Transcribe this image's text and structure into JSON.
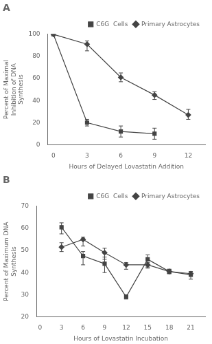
{
  "chart_data": [
    {
      "type": "line",
      "title": "A",
      "xlabel": "Hours of Delayed Lovastatin Addition",
      "ylabel": "Percent of Maximal Inhibition of DNA Synthesis",
      "xlim": [
        -0.5,
        13.5
      ],
      "xticks": [
        0,
        3,
        6,
        9,
        12
      ],
      "ylim": [
        0,
        100
      ],
      "yticks": [
        0,
        20,
        40,
        60,
        80,
        100
      ],
      "grid": false,
      "legend": "upper right",
      "series": [
        {
          "name": "C6G  Cells",
          "color": "#444444",
          "marker": "square",
          "x": [
            0,
            3,
            6,
            9
          ],
          "values": [
            100,
            20,
            12,
            10
          ],
          "error_low": [
            0,
            3,
            5,
            5
          ],
          "error_high": [
            0,
            3,
            5,
            5
          ]
        },
        {
          "name": "Primary Astrocytes",
          "color": "#444444",
          "marker": "diamond",
          "x": [
            0,
            3,
            6,
            9,
            12
          ],
          "values": [
            100,
            91,
            61,
            45,
            27
          ],
          "error_low": [
            0,
            6,
            4,
            4,
            4
          ],
          "error_high": [
            0,
            3,
            4,
            3,
            5
          ]
        }
      ]
    },
    {
      "type": "line",
      "title": "B",
      "xlabel": "Hours of Lovastatin Incubation",
      "ylabel": "Percent of Maximum DNA Synthesis",
      "xlim": [
        -0.5,
        23
      ],
      "xticks": [
        0,
        3,
        6,
        9,
        12,
        15,
        18,
        21
      ],
      "ylim": [
        20,
        70
      ],
      "yticks": [
        20,
        30,
        40,
        50,
        60,
        70
      ],
      "grid": false,
      "legend": "upper right",
      "series": [
        {
          "name": "C6G  Cells",
          "color": "#444444",
          "marker": "square",
          "x": [
            3,
            6,
            9,
            12,
            15,
            18,
            21
          ],
          "values": [
            60.5,
            47.5,
            44,
            29,
            46,
            40.5,
            39
          ],
          "error_low": [
            3,
            4,
            4,
            1,
            4,
            1,
            2
          ],
          "error_high": [
            2,
            2,
            3,
            1,
            2,
            1,
            1
          ]
        },
        {
          "name": "Primary Astrocytes",
          "color": "#444444",
          "marker": "diamond",
          "x": [
            3,
            6,
            9,
            12,
            15,
            18,
            21
          ],
          "values": [
            51.5,
            55,
            49,
            43.5,
            43.5,
            40.5,
            39.5
          ],
          "error_low": [
            2,
            3,
            3,
            2,
            1,
            1,
            1
          ],
          "error_high": [
            2,
            1,
            2,
            1,
            1,
            1,
            1
          ]
        }
      ]
    }
  ]
}
